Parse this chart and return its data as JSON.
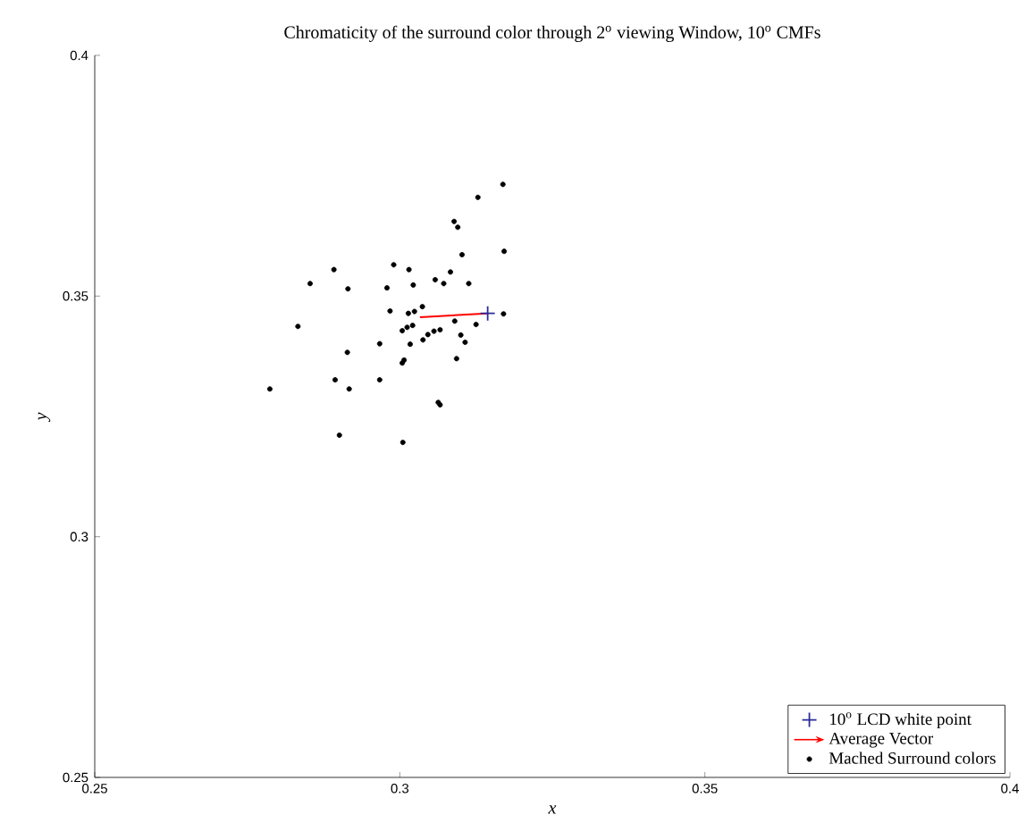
{
  "chart_data": {
    "type": "scatter",
    "title": "Chromaticity of the surround color through 2$^{o}$ viewing Window, 10$^{o}$ CMFs",
    "xlabel": "x",
    "ylabel": "y",
    "xlim": [
      0.25,
      0.4
    ],
    "ylim": [
      0.25,
      0.4
    ],
    "xticks": [
      0.25,
      0.3,
      0.35,
      0.4
    ],
    "yticks": [
      0.25,
      0.3,
      0.35,
      0.4
    ],
    "legend": "bottom right",
    "grid": false,
    "series": [
      {
        "name": "10$^{o}$ LCD white point",
        "marker": "cross",
        "color": "#2b2b9a",
        "x": [
          0.3144
        ],
        "values": [
          0.3464
        ]
      },
      {
        "name": "Average Vector",
        "type": "line",
        "marker": "none",
        "color": "#ff0000",
        "x": [
          0.3033,
          0.3144
        ],
        "values": [
          0.3456,
          0.3464
        ]
      },
      {
        "name": "Mached Surround colors",
        "marker": "circle",
        "color": "#000000",
        "x": [
          0.3169,
          0.3128,
          0.3089,
          0.3095,
          0.3171,
          0.3102,
          0.2892,
          0.299,
          0.3015,
          0.2853,
          0.2915,
          0.2979,
          0.3022,
          0.3058,
          0.3072,
          0.3083,
          0.3113,
          0.2984,
          0.3014,
          0.3024,
          0.3037,
          0.317,
          0.2833,
          0.309,
          0.3125,
          0.3004,
          0.3012,
          0.3021,
          0.3038,
          0.3046,
          0.3056,
          0.3066,
          0.31,
          0.3107,
          0.2967,
          0.3017,
          0.2914,
          0.3004,
          0.3007,
          0.3093,
          0.2894,
          0.2967,
          0.2917,
          0.2787,
          0.3063,
          0.3066,
          0.2901,
          0.3005
        ],
        "values": [
          0.3732,
          0.3705,
          0.3655,
          0.3643,
          0.3593,
          0.3586,
          0.3555,
          0.3565,
          0.3555,
          0.3526,
          0.3515,
          0.3517,
          0.3523,
          0.3534,
          0.3526,
          0.355,
          0.3526,
          0.3469,
          0.3464,
          0.3468,
          0.3478,
          0.3463,
          0.3437,
          0.3448,
          0.3441,
          0.3428,
          0.3435,
          0.3439,
          0.3409,
          0.342,
          0.3427,
          0.343,
          0.3419,
          0.3404,
          0.3401,
          0.34,
          0.3383,
          0.3361,
          0.3367,
          0.337,
          0.3326,
          0.3326,
          0.3307,
          0.3307,
          0.3279,
          0.3274,
          0.3211,
          0.3196
        ]
      }
    ]
  }
}
